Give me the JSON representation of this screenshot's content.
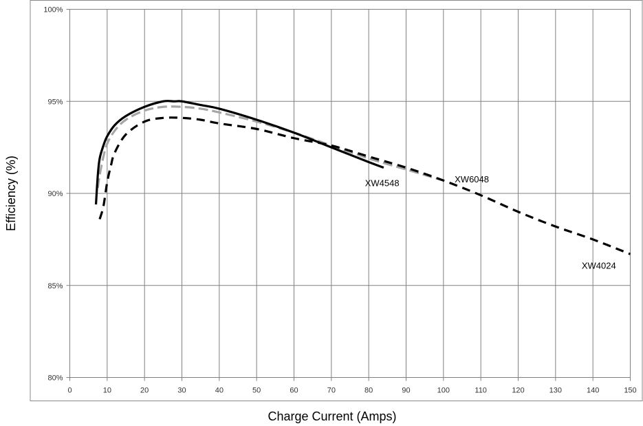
{
  "chart_data": {
    "type": "line",
    "title": "",
    "xlabel": "Charge Current (Amps)",
    "ylabel": "Efficiency (%)",
    "xlim": [
      0,
      150
    ],
    "ylim": [
      80,
      100
    ],
    "x_ticks": [
      0,
      10,
      20,
      30,
      40,
      50,
      60,
      70,
      80,
      90,
      100,
      110,
      120,
      130,
      140,
      150
    ],
    "x_tick_labels": [
      "0",
      "10",
      "20",
      "30",
      "40",
      "50",
      "60",
      "70",
      "80",
      "90",
      "100",
      "110",
      "120",
      "130",
      "140",
      "150"
    ],
    "y_ticks": [
      80,
      85,
      90,
      95,
      100
    ],
    "y_tick_labels": [
      "80%",
      "85%",
      "90%",
      "95%",
      "100%"
    ],
    "grid": true,
    "series": [
      {
        "name": "XW6048",
        "color": "#a6a6a6",
        "dash": "long-dash",
        "x": [
          7.5,
          8,
          9,
          10,
          12,
          15,
          20,
          25,
          30,
          35,
          40,
          50,
          60,
          70,
          80,
          90,
          100
        ],
        "y": [
          90.3,
          91.0,
          92.0,
          92.7,
          93.4,
          94.0,
          94.5,
          94.7,
          94.7,
          94.6,
          94.4,
          93.9,
          93.3,
          92.6,
          91.9,
          91.3,
          90.7
        ]
      },
      {
        "name": "XW4548",
        "color": "#000000",
        "dash": "solid",
        "x": [
          7,
          7.5,
          8,
          9,
          10,
          12,
          15,
          20,
          25,
          28,
          30,
          35,
          40,
          50,
          60,
          70,
          80,
          84
        ],
        "y": [
          89.4,
          91.0,
          91.9,
          92.6,
          93.1,
          93.7,
          94.2,
          94.7,
          95.0,
          95.0,
          95.0,
          94.8,
          94.6,
          94.0,
          93.3,
          92.5,
          91.7,
          91.4
        ]
      },
      {
        "name": "XW4024",
        "color": "#000000",
        "dash": "short-dash",
        "x": [
          8,
          9,
          10,
          11,
          12,
          15,
          20,
          25,
          30,
          35,
          40,
          50,
          60,
          70,
          80,
          90,
          100,
          110,
          120,
          130,
          140,
          150
        ],
        "y": [
          88.6,
          89.3,
          90.6,
          91.5,
          92.2,
          93.2,
          93.9,
          94.1,
          94.1,
          94.0,
          93.8,
          93.5,
          93.0,
          92.6,
          92.0,
          91.4,
          90.7,
          89.9,
          89.0,
          88.2,
          87.5,
          86.7
        ]
      }
    ],
    "annotations": [
      {
        "text": "XW4548",
        "x": 79,
        "y": 90.4
      },
      {
        "text": "XW6048",
        "x": 103,
        "y": 90.6
      },
      {
        "text": "XW4024",
        "x": 137,
        "y": 85.9
      }
    ]
  }
}
